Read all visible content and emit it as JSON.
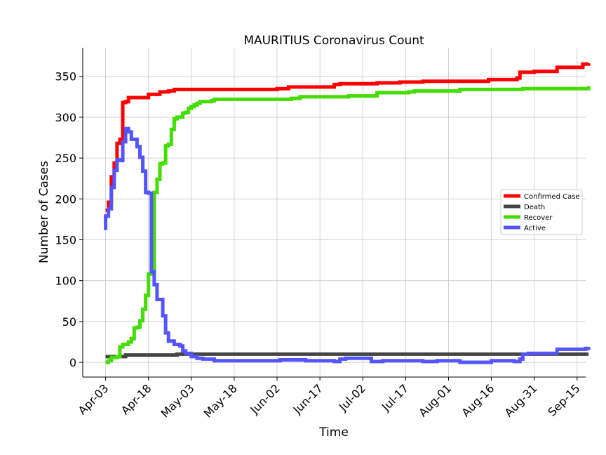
{
  "chart_data": {
    "type": "line",
    "title": "MAURITIUS Coronavirus Count",
    "xlabel": "Time",
    "ylabel": "Number of Cases",
    "x_tick_labels": [
      "Apr-03",
      "Apr-18",
      "May-03",
      "May-18",
      "Jun-02",
      "Jun-17",
      "Jul-02",
      "Jul-17",
      "Aug-01",
      "Aug-16",
      "Aug-31",
      "Sep-15"
    ],
    "y_ticks": [
      0,
      50,
      100,
      150,
      200,
      250,
      300,
      350
    ],
    "xlim_days": [
      -8,
      168
    ],
    "ylim": [
      -18,
      385
    ],
    "grid": true,
    "legend_position": "center-right",
    "series": [
      {
        "name": "Confirmed Case",
        "color": "#ff0000",
        "points": [
          [
            0,
            186
          ],
          [
            1,
            196
          ],
          [
            2,
            227
          ],
          [
            3,
            244
          ],
          [
            4,
            268
          ],
          [
            5,
            273
          ],
          [
            6,
            318
          ],
          [
            7,
            319
          ],
          [
            8,
            324
          ],
          [
            15,
            328
          ],
          [
            19,
            331
          ],
          [
            22,
            332
          ],
          [
            24,
            334
          ],
          [
            60,
            335
          ],
          [
            63,
            335
          ],
          [
            64,
            337
          ],
          [
            65,
            337
          ],
          [
            80,
            337
          ],
          [
            80,
            340
          ],
          [
            82,
            341
          ],
          [
            95,
            341
          ],
          [
            95,
            342
          ],
          [
            102,
            342
          ],
          [
            103,
            343
          ],
          [
            111,
            343
          ],
          [
            111,
            344
          ],
          [
            133,
            344
          ],
          [
            134,
            346
          ],
          [
            142,
            346
          ],
          [
            144,
            348
          ],
          [
            145,
            355
          ],
          [
            150,
            356
          ],
          [
            158,
            356
          ],
          [
            158,
            361
          ],
          [
            166,
            361
          ],
          [
            167,
            365
          ],
          [
            169,
            366
          ]
        ]
      },
      {
        "name": "Death",
        "color": "#444444",
        "points": [
          [
            0,
            7
          ],
          [
            7,
            7
          ],
          [
            7,
            9
          ],
          [
            24,
            9
          ],
          [
            25,
            10
          ],
          [
            169,
            10
          ]
        ]
      },
      {
        "name": "Recover",
        "color": "#44dd00",
        "points": [
          [
            0,
            0
          ],
          [
            1,
            2
          ],
          [
            2,
            6
          ],
          [
            4,
            7
          ],
          [
            5,
            19
          ],
          [
            6,
            22
          ],
          [
            8,
            25
          ],
          [
            9,
            29
          ],
          [
            10,
            42
          ],
          [
            11,
            43
          ],
          [
            12,
            51
          ],
          [
            13,
            65
          ],
          [
            14,
            82
          ],
          [
            15,
            108
          ],
          [
            16,
            112
          ],
          [
            17,
            208
          ],
          [
            18,
            224
          ],
          [
            19,
            243
          ],
          [
            20,
            244
          ],
          [
            21,
            265
          ],
          [
            22,
            267
          ],
          [
            23,
            285
          ],
          [
            24,
            298
          ],
          [
            25,
            300
          ],
          [
            26,
            300
          ],
          [
            27,
            305
          ],
          [
            28,
            306
          ],
          [
            29,
            311
          ],
          [
            30,
            313
          ],
          [
            31,
            315
          ],
          [
            32,
            317
          ],
          [
            33,
            319
          ],
          [
            37,
            320
          ],
          [
            38,
            322
          ],
          [
            65,
            323
          ],
          [
            68,
            325
          ],
          [
            85,
            326
          ],
          [
            95,
            326
          ],
          [
            95,
            330
          ],
          [
            105,
            330
          ],
          [
            106,
            331
          ],
          [
            108,
            332
          ],
          [
            123,
            332
          ],
          [
            124,
            334
          ],
          [
            145,
            334
          ],
          [
            146,
            335
          ],
          [
            169,
            335
          ],
          [
            169,
            338
          ]
        ]
      },
      {
        "name": "Active",
        "color": "#5555ff",
        "points": [
          [
            0,
            162
          ],
          [
            0,
            179
          ],
          [
            1,
            188
          ],
          [
            2,
            214
          ],
          [
            3,
            235
          ],
          [
            4,
            248
          ],
          [
            5,
            247
          ],
          [
            6,
            270
          ],
          [
            7,
            286
          ],
          [
            8,
            282
          ],
          [
            9,
            273
          ],
          [
            11,
            264
          ],
          [
            12,
            251
          ],
          [
            13,
            234
          ],
          [
            14,
            208
          ],
          [
            15,
            207
          ],
          [
            16,
            111
          ],
          [
            17,
            95
          ],
          [
            18,
            77
          ],
          [
            20,
            57
          ],
          [
            21,
            36
          ],
          [
            22,
            26
          ],
          [
            24,
            22
          ],
          [
            26,
            20
          ],
          [
            27,
            14
          ],
          [
            28,
            11
          ],
          [
            30,
            7
          ],
          [
            32,
            5
          ],
          [
            34,
            4
          ],
          [
            36,
            4
          ],
          [
            38,
            2
          ],
          [
            60,
            2
          ],
          [
            61,
            3
          ],
          [
            69,
            3
          ],
          [
            70,
            2
          ],
          [
            80,
            2
          ],
          [
            80,
            1
          ],
          [
            82,
            4
          ],
          [
            84,
            5
          ],
          [
            92,
            5
          ],
          [
            93,
            1
          ],
          [
            97,
            2
          ],
          [
            110,
            2
          ],
          [
            111,
            1
          ],
          [
            116,
            2
          ],
          [
            124,
            0
          ],
          [
            134,
            0
          ],
          [
            135,
            2
          ],
          [
            142,
            2
          ],
          [
            143,
            1
          ],
          [
            145,
            4
          ],
          [
            146,
            10
          ],
          [
            148,
            11
          ],
          [
            154,
            11
          ],
          [
            158,
            11
          ],
          [
            158,
            16
          ],
          [
            166,
            16
          ],
          [
            168,
            17
          ],
          [
            169,
            19
          ]
        ]
      }
    ]
  }
}
